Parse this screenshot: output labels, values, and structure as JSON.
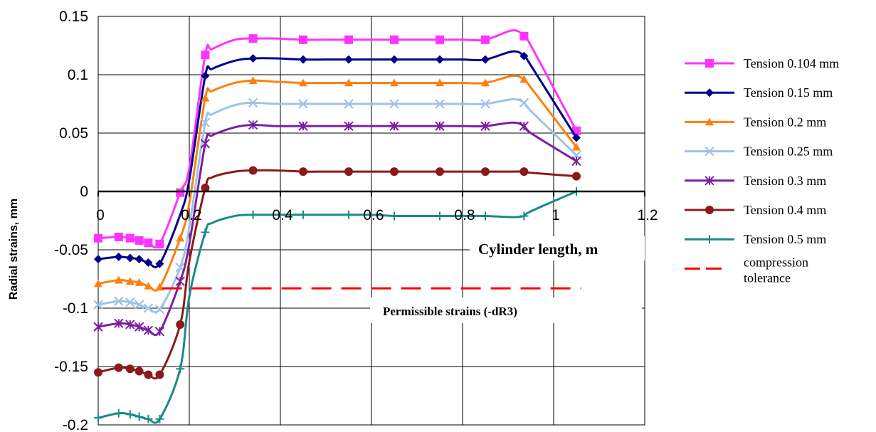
{
  "chart_data": {
    "type": "line",
    "title": "",
    "xlabel": "Cylinder length, m",
    "ylabel": "Radial strains, mm",
    "xlim": [
      0,
      1.2
    ],
    "ylim": [
      -0.2,
      0.15
    ],
    "xticks": [
      "0",
      "0.2",
      "0.4",
      "0.6",
      "0.8",
      "1",
      "1.2"
    ],
    "yticks": [
      "0.15",
      "0.1",
      "0.05",
      "0",
      "-0.05",
      "-0.1",
      "-0.15",
      "-0.2"
    ],
    "grid": true,
    "legend_position": "right",
    "annotations": [
      {
        "text": "Cylinder length, m"
      },
      {
        "text": "Permissible strains  (-dR3)"
      }
    ],
    "series": [
      {
        "name": "Tension 0.104 mm",
        "color": "#ff33ff",
        "marker": "square",
        "x": [
          0,
          0.045,
          0.07,
          0.09,
          0.11,
          0.135,
          0.18,
          0.2,
          0.235,
          0.25,
          0.3,
          0.34,
          0.39,
          0.45,
          0.5,
          0.55,
          0.6,
          0.65,
          0.7,
          0.75,
          0.8,
          0.85,
          0.91,
          0.935,
          0.95,
          1.05
        ],
        "y": [
          -0.04,
          -0.039,
          -0.04,
          -0.042,
          -0.044,
          -0.045,
          -0.001,
          0.02,
          0.117,
          0.122,
          0.13,
          0.131,
          0.131,
          0.13,
          0.13,
          0.13,
          0.13,
          0.13,
          0.13,
          0.13,
          0.13,
          0.13,
          0.138,
          0.133,
          0.125,
          0.052
        ],
        "markers": [
          0,
          1,
          2,
          3,
          4,
          5,
          6,
          8,
          11,
          13,
          15,
          17,
          19,
          21,
          23,
          25
        ]
      },
      {
        "name": "Tension 0.15 mm",
        "color": "#00008b",
        "marker": "diamond",
        "x": [
          0,
          0.045,
          0.07,
          0.09,
          0.11,
          0.135,
          0.18,
          0.2,
          0.235,
          0.25,
          0.3,
          0.34,
          0.39,
          0.45,
          0.5,
          0.55,
          0.6,
          0.65,
          0.7,
          0.75,
          0.8,
          0.85,
          0.91,
          0.935,
          0.95,
          1.05
        ],
        "y": [
          -0.058,
          -0.056,
          -0.057,
          -0.058,
          -0.061,
          -0.062,
          -0.02,
          0.01,
          0.099,
          0.105,
          0.112,
          0.114,
          0.114,
          0.113,
          0.113,
          0.113,
          0.113,
          0.113,
          0.113,
          0.113,
          0.113,
          0.113,
          0.12,
          0.116,
          0.108,
          0.046
        ],
        "markers": [
          0,
          1,
          2,
          3,
          4,
          5,
          8,
          11,
          13,
          15,
          17,
          19,
          21,
          23,
          25
        ]
      },
      {
        "name": "Tension 0.2 mm",
        "color": "#ff7f0e",
        "marker": "triangle",
        "x": [
          0,
          0.045,
          0.07,
          0.09,
          0.11,
          0.135,
          0.18,
          0.2,
          0.235,
          0.25,
          0.3,
          0.34,
          0.39,
          0.45,
          0.5,
          0.55,
          0.6,
          0.65,
          0.7,
          0.75,
          0.8,
          0.85,
          0.91,
          0.935,
          0.95,
          1.05
        ],
        "y": [
          -0.079,
          -0.076,
          -0.077,
          -0.078,
          -0.081,
          -0.082,
          -0.04,
          -0.01,
          0.08,
          0.086,
          0.093,
          0.095,
          0.094,
          0.093,
          0.093,
          0.093,
          0.093,
          0.093,
          0.093,
          0.093,
          0.093,
          0.093,
          0.099,
          0.096,
          0.089,
          0.038
        ],
        "markers": [
          0,
          1,
          2,
          3,
          4,
          5,
          6,
          8,
          11,
          13,
          15,
          17,
          19,
          21,
          23,
          25
        ]
      },
      {
        "name": "Tension 0.25 mm",
        "color": "#9dc3e6",
        "marker": "x",
        "x": [
          0,
          0.045,
          0.07,
          0.09,
          0.11,
          0.135,
          0.18,
          0.2,
          0.235,
          0.25,
          0.3,
          0.34,
          0.39,
          0.45,
          0.5,
          0.55,
          0.6,
          0.65,
          0.7,
          0.75,
          0.8,
          0.85,
          0.91,
          0.935,
          0.95,
          1.05
        ],
        "y": [
          -0.097,
          -0.094,
          -0.095,
          -0.097,
          -0.1,
          -0.101,
          -0.065,
          -0.03,
          0.059,
          0.066,
          0.074,
          0.076,
          0.075,
          0.075,
          0.075,
          0.075,
          0.075,
          0.075,
          0.075,
          0.075,
          0.075,
          0.075,
          0.079,
          0.076,
          0.069,
          0.031
        ],
        "markers": [
          0,
          1,
          2,
          3,
          4,
          5,
          6,
          8,
          11,
          13,
          15,
          17,
          19,
          21,
          23,
          25
        ]
      },
      {
        "name": "Tension 0.3 mm",
        "color": "#7b1fa2",
        "marker": "star",
        "x": [
          0,
          0.045,
          0.07,
          0.09,
          0.11,
          0.135,
          0.18,
          0.2,
          0.235,
          0.25,
          0.3,
          0.34,
          0.39,
          0.45,
          0.5,
          0.55,
          0.6,
          0.65,
          0.7,
          0.75,
          0.8,
          0.85,
          0.91,
          0.935,
          0.95,
          1.05
        ],
        "y": [
          -0.116,
          -0.113,
          -0.114,
          -0.116,
          -0.119,
          -0.12,
          -0.077,
          -0.045,
          0.041,
          0.048,
          0.055,
          0.057,
          0.056,
          0.056,
          0.056,
          0.056,
          0.056,
          0.056,
          0.056,
          0.056,
          0.056,
          0.056,
          0.059,
          0.056,
          0.05,
          0.026
        ],
        "markers": [
          0,
          1,
          2,
          3,
          4,
          5,
          6,
          8,
          11,
          13,
          15,
          17,
          19,
          21,
          23,
          25
        ]
      },
      {
        "name": "Tension 0.4 mm",
        "color": "#8b1a1a",
        "marker": "circle",
        "x": [
          0,
          0.045,
          0.07,
          0.09,
          0.11,
          0.135,
          0.18,
          0.2,
          0.235,
          0.25,
          0.3,
          0.34,
          0.39,
          0.45,
          0.5,
          0.55,
          0.6,
          0.65,
          0.7,
          0.75,
          0.8,
          0.85,
          0.91,
          0.935,
          0.95,
          1.05
        ],
        "y": [
          -0.155,
          -0.151,
          -0.152,
          -0.154,
          -0.157,
          -0.157,
          -0.114,
          -0.06,
          0.003,
          0.012,
          0.017,
          0.018,
          0.018,
          0.017,
          0.017,
          0.017,
          0.017,
          0.017,
          0.017,
          0.017,
          0.017,
          0.017,
          0.017,
          0.017,
          0.016,
          0.013
        ],
        "markers": [
          0,
          1,
          2,
          3,
          4,
          5,
          6,
          8,
          11,
          13,
          15,
          17,
          19,
          21,
          23,
          25
        ]
      },
      {
        "name": "Tension 0.5 mm",
        "color": "#1a8a8a",
        "marker": "plus",
        "x": [
          0,
          0.045,
          0.07,
          0.09,
          0.11,
          0.135,
          0.18,
          0.2,
          0.235,
          0.25,
          0.3,
          0.34,
          0.39,
          0.45,
          0.5,
          0.55,
          0.6,
          0.65,
          0.7,
          0.75,
          0.8,
          0.85,
          0.91,
          0.935,
          0.95,
          1.05
        ],
        "y": [
          -0.194,
          -0.19,
          -0.191,
          -0.193,
          -0.195,
          -0.195,
          -0.152,
          -0.09,
          -0.035,
          -0.027,
          -0.021,
          -0.02,
          -0.02,
          -0.02,
          -0.02,
          -0.02,
          -0.02,
          -0.021,
          -0.021,
          -0.021,
          -0.021,
          -0.021,
          -0.022,
          -0.021,
          -0.017,
          0.0
        ],
        "markers": [
          0,
          1,
          2,
          3,
          4,
          5,
          6,
          8,
          11,
          13,
          15,
          17,
          19,
          21,
          23,
          25
        ]
      },
      {
        "name": "compression tolerance",
        "color": "#ff0000",
        "marker": "none",
        "dashed": true,
        "x": [
          0.14,
          1.06
        ],
        "y": [
          -0.083,
          -0.083
        ]
      }
    ]
  }
}
